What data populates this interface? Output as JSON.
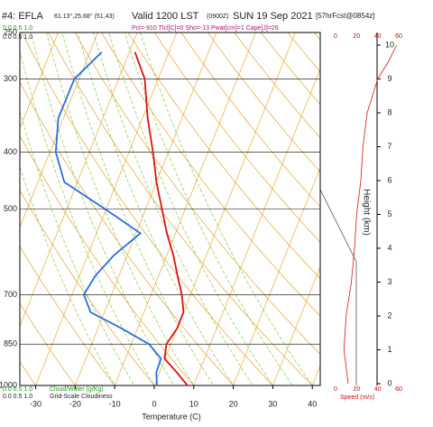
{
  "chart_data": {
    "type": "skew-t",
    "title_station": "#4: EFLA",
    "title_coords": "61.13°,25.68° (51,43)",
    "title_valid": "Valid 1200 LST",
    "title_utc": "(0900Z)",
    "title_date": "SUN 19 Sep 2021",
    "title_fcst": "[57hrFcst@0854z]",
    "subtitle": "Pcl=-910 Tlcl[C]=0 Sho=-13 Pwat[cm]=1 Cape[J]=26",
    "cloud_water_scale": "0.0  0.5  1.0",
    "cloudiness_scale": "0.0  0.5  1.0",
    "cloud_water_label": "Cloud/Water (g/Kg)",
    "cloudiness_label": "Grid-Scale Cloudiness",
    "xlabel": "Temperature (C)",
    "y2label": "Height (km)",
    "speed_label": "Speed (m/s)",
    "pressure": [
      1000,
      950,
      900,
      850,
      800,
      750,
      700,
      650,
      600,
      550,
      500,
      450,
      400,
      350,
      300,
      270
    ],
    "series": [
      {
        "name": "Temperature",
        "color": "#e01010",
        "values": [
          8.4,
          4.4,
          -0.1,
          -1.1,
          0,
          0,
          -2.2,
          -5.2,
          -8.3,
          -12.2,
          -15.9,
          -20.0,
          -23.9,
          -28.7,
          -33.4,
          -38.6
        ]
      },
      {
        "name": "Dewpoint",
        "color": "#2a6fe0",
        "values": [
          0.7,
          -0.8,
          -1.0,
          -5.5,
          -13.9,
          -23.5,
          -27.0,
          -26.0,
          -23.4,
          -18.9,
          -30.3,
          -43.3,
          -48.5,
          -51.3,
          -51.2,
          -47.0
        ]
      }
    ],
    "xlim": [
      -34,
      42
    ],
    "xticks": [
      -30,
      -20,
      -10,
      0,
      10,
      20,
      30,
      40
    ],
    "ylim": [
      1000,
      250
    ],
    "yticks": [
      250,
      300,
      400,
      500,
      700,
      850,
      1000
    ],
    "log_y": true,
    "y2lim": [
      0,
      10
    ],
    "y2ticks": [
      0,
      1,
      2,
      3,
      4,
      5,
      6,
      7,
      8,
      9,
      10
    ],
    "speed": {
      "color": "#e01010",
      "height": [
        0,
        1,
        2,
        3,
        4,
        5,
        6,
        7,
        8,
        9,
        9.5,
        10
      ],
      "values": [
        12,
        8,
        10,
        15,
        18,
        20,
        24,
        26,
        30,
        40,
        50,
        58
      ],
      "xlim": [
        0,
        60
      ],
      "xticks": [
        0,
        20,
        40,
        60
      ]
    }
  }
}
